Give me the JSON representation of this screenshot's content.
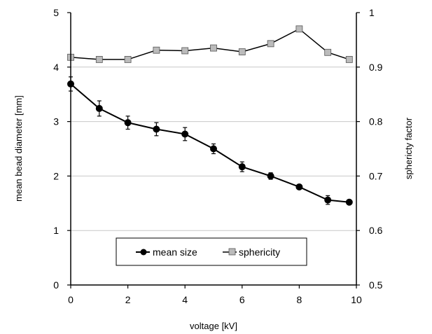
{
  "chart_data": {
    "type": "line",
    "xlabel": "voltage [kV]",
    "ylabel": "mean bead diameter [mm]",
    "y2label": "sphericty factor",
    "xlim": [
      0,
      10
    ],
    "ylim": [
      0,
      5
    ],
    "y2lim": [
      0.5,
      1
    ],
    "x_ticks": [
      "0",
      "2",
      "4",
      "6",
      "8",
      "10"
    ],
    "y_ticks": [
      "0",
      "1",
      "2",
      "3",
      "4",
      "5"
    ],
    "y2_ticks": [
      "0.5",
      "0.6",
      "0.7",
      "0.8",
      "0.9",
      "1"
    ],
    "grid": "horizontal",
    "legend_position": "bottom-center",
    "series": [
      {
        "name": "mean size",
        "axis": "left",
        "marker": "circle",
        "color": "#000000",
        "x": [
          0,
          1,
          2,
          3,
          4,
          5,
          6,
          7,
          8,
          9,
          9.75
        ],
        "values": [
          3.69,
          3.24,
          2.98,
          2.86,
          2.77,
          2.5,
          2.17,
          2.0,
          1.8,
          1.56,
          1.52
        ],
        "error": [
          0.13,
          0.14,
          0.12,
          0.12,
          0.12,
          0.09,
          0.09,
          0.06,
          0.0,
          0.08,
          0.0
        ]
      },
      {
        "name": "sphericity",
        "axis": "right",
        "marker": "square",
        "color": "#bbbbbb",
        "x": [
          0,
          1,
          2,
          3,
          4,
          5,
          6,
          7,
          8,
          9,
          9.75
        ],
        "values": [
          0.918,
          0.914,
          0.914,
          0.931,
          0.93,
          0.935,
          0.928,
          0.943,
          0.97,
          0.927,
          0.914
        ]
      }
    ]
  }
}
